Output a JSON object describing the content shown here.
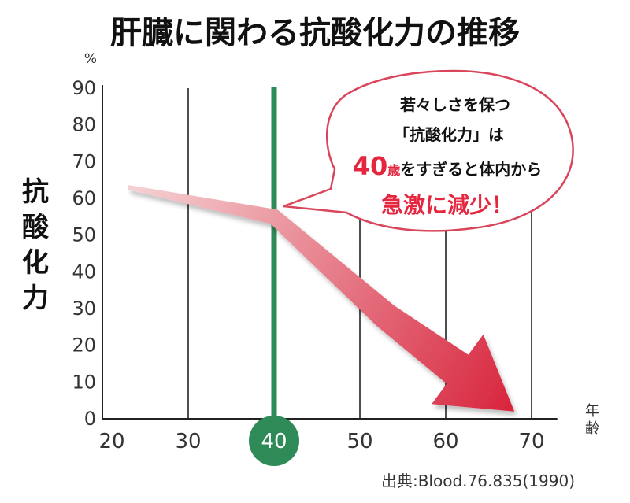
{
  "chart_data": {
    "type": "line",
    "title": "肝臓に関わる抗酸化力の推移",
    "ylabel": "抗酸化力",
    "y_unit": "%",
    "x_unit": "年齢",
    "x_ticks": [
      "20",
      "30",
      "40",
      "50",
      "60",
      "70"
    ],
    "y_ticks": [
      "0",
      "10",
      "20",
      "30",
      "40",
      "50",
      "60",
      "70",
      "80",
      "90"
    ],
    "xlim": [
      20,
      73
    ],
    "ylim": [
      0,
      90
    ],
    "grid": "vertical",
    "highlight_x": 40,
    "highlight_label": "40",
    "series": [
      {
        "x": [
          23,
          40,
          53,
          68
        ],
        "y": [
          63,
          55,
          28,
          2
        ]
      }
    ],
    "callout": {
      "line1": "若々しさを保つ",
      "line2": "「抗酸化力」は",
      "line3_emph": "40",
      "line3_small": "歳",
      "line3_rest": "をすぎると体内から",
      "line4": "急激に減少！"
    },
    "source": "出典:Blood.76.835(1990)",
    "colors": {
      "highlight": "#2e8a57",
      "arrow_start": "#f4d0d2",
      "arrow_end": "#d8243c",
      "emphasis": "#e6263f",
      "callout_border": "#d9455a",
      "grid": "#222222"
    }
  }
}
